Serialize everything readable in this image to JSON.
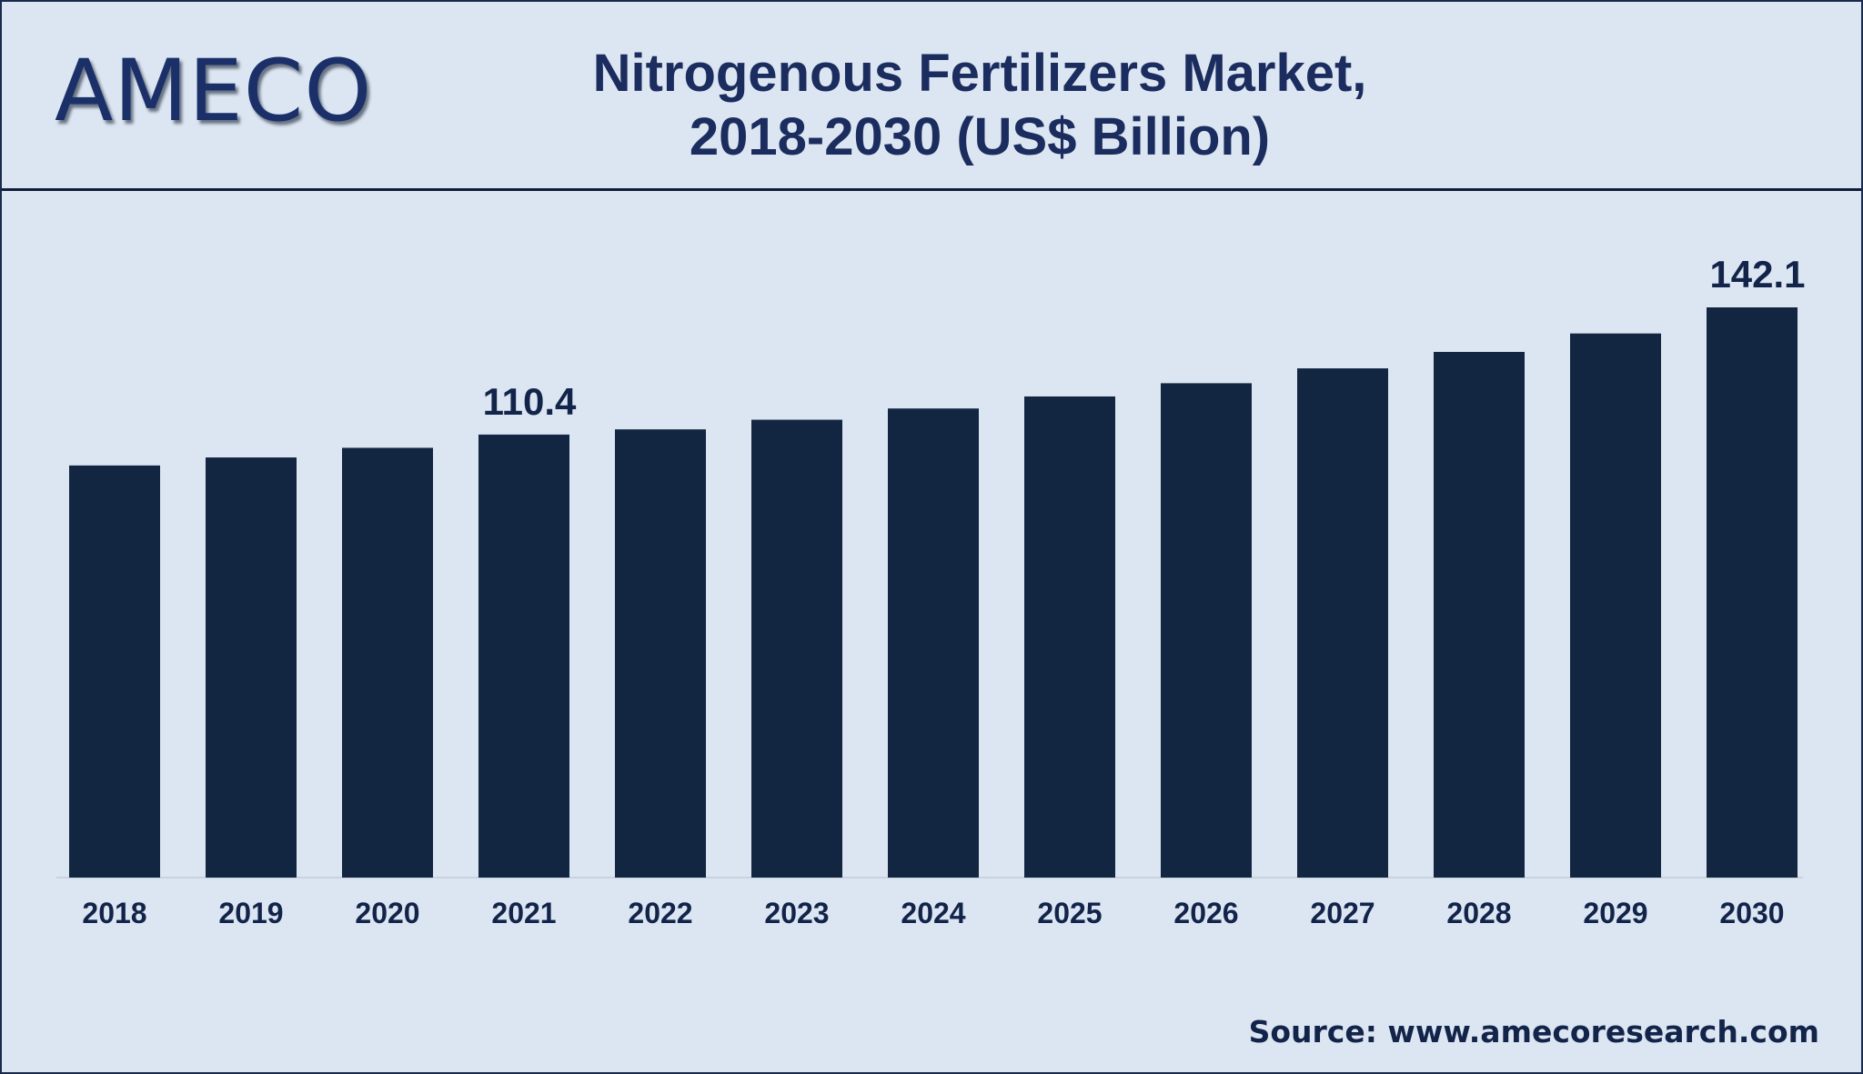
{
  "brand": {
    "logo_text": "AMECO",
    "primary_color": "#1b3068",
    "bar_color": "#132641",
    "background_color": "#dce6f2"
  },
  "header": {
    "title_line1": "Nitrogenous Fertilizers Market,",
    "title_line2": "2018-2030 (US$ Billion)"
  },
  "chart_data": {
    "type": "bar",
    "title": "Nitrogenous Fertilizers Market, 2018-2030 (US$ Billion)",
    "xlabel": "",
    "ylabel": "",
    "categories": [
      "2018",
      "2019",
      "2020",
      "2021",
      "2022",
      "2023",
      "2024",
      "2025",
      "2026",
      "2027",
      "2028",
      "2029",
      "2030"
    ],
    "values": [
      102.7,
      104.7,
      107.1,
      110.4,
      111.7,
      114.1,
      116.9,
      119.9,
      123.2,
      126.9,
      131.0,
      135.6,
      142.1
    ],
    "data_labels": [
      {
        "index": 3,
        "text": "110.4"
      },
      {
        "index": 12,
        "text": "142.1"
      }
    ],
    "ylim": [
      0,
      142.1
    ],
    "grid": false,
    "legend": "none"
  },
  "footer": {
    "source": "Source: www.amecoresearch.com"
  }
}
